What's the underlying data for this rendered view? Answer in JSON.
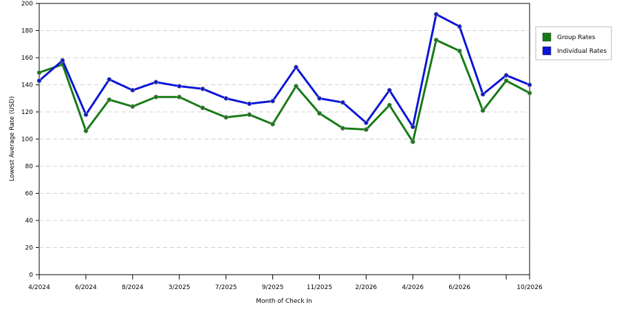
{
  "chart_data": {
    "type": "line",
    "x_label": "Month of Check In",
    "y_label": "Lowest Average Rate (USD)",
    "categories": [
      "4/2024",
      null,
      "6/2024",
      null,
      "8/2024",
      null,
      "3/2025",
      null,
      "7/2025",
      null,
      "9/2025",
      null,
      "11/2025",
      null,
      "2/2026",
      null,
      "4/2026",
      null,
      "6/2026",
      null,
      null,
      "10/2026"
    ],
    "series": [
      {
        "name": "Group Rates",
        "color": "#157a15",
        "values": [
          149,
          155,
          106,
          129,
          124,
          131,
          131,
          123,
          116,
          118,
          111,
          139,
          119,
          108,
          107,
          125,
          98,
          173,
          165,
          121,
          143,
          134
        ]
      },
      {
        "name": "Individual Rates",
        "color": "#0a14d8",
        "values": [
          143,
          158,
          118,
          144,
          136,
          142,
          139,
          137,
          130,
          126,
          128,
          153,
          130,
          127,
          112,
          136,
          109,
          192,
          183,
          133,
          147,
          140
        ]
      }
    ],
    "ylim": [
      0,
      200
    ],
    "yticks": [
      0,
      20,
      40,
      60,
      80,
      100,
      120,
      140,
      160,
      180,
      200
    ],
    "grid": true,
    "legend": "right"
  }
}
